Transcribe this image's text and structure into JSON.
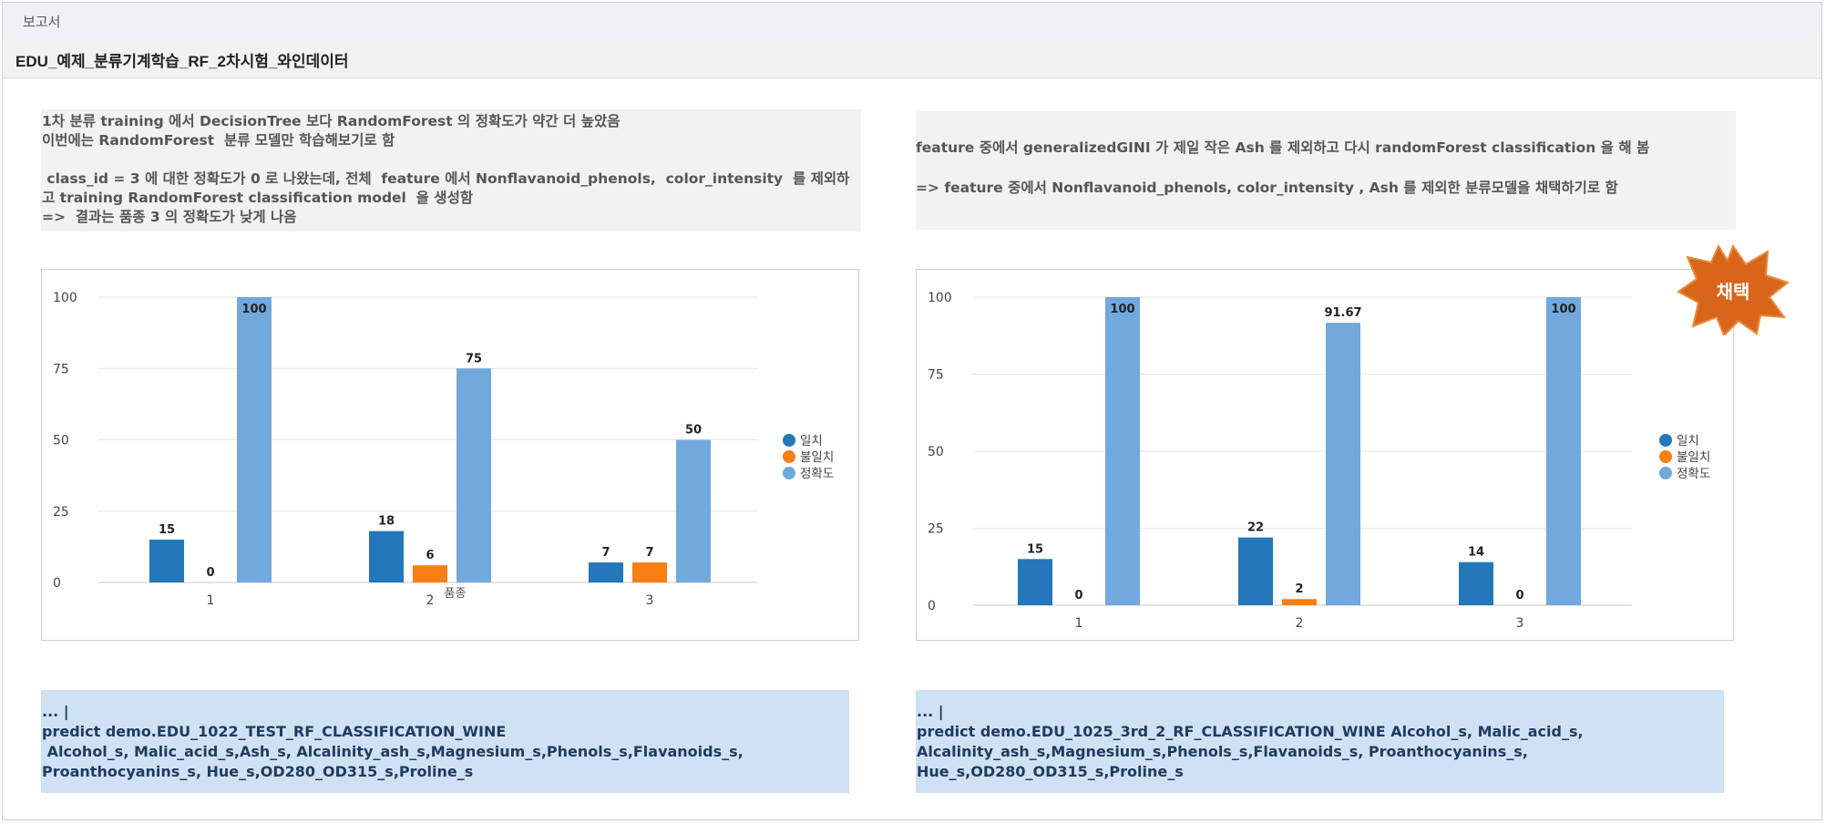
{
  "window": {
    "title": "보고서"
  },
  "report": {
    "title": "EDU_예제_분류기계학습_RF_2차시험_와인데이터"
  },
  "left_panel": {
    "note": "1차 분류 training 에서 DecisionTree 보다 RandomForest 의 정확도가 약간 더 높았음\n이번에는 RandomForest  분류 모델만 학습해보기로 함\n\n class_id = 3 에 대한 정확도가 0 로 나왔는데, 전체  feature 에서 Nonflavanoid_phenols,  color_intensity  를 제외하\n고 training RandomForest classification model  을 생성함\n=>  결과는 품종 3 의 정확도가 낮게 나옴",
    "query": "... |\npredict demo.EDU_1022_TEST_RF_CLASSIFICATION_WINE\n Alcohol_s, Malic_acid_s,Ash_s, Alcalinity_ash_s,Magnesium_s,Phenols_s,Flavanoids_s,\nProanthocyanins_s, Hue_s,OD280_OD315_s,Proline_s"
  },
  "right_panel": {
    "note": "feature 중에서 generalizedGINI 가 제일 작은 Ash 를 제외하고 다시 randomForest classification 을 해 봄\n\n=> feature 중에서 Nonflavanoid_phenols, color_intensity , Ash 를 제외한 분류모델을 채택하기로 함",
    "badge": "채택",
    "query": "... |\npredict demo.EDU_1025_3rd_2_RF_CLASSIFICATION_WINE Alcohol_s, Malic_acid_s,\nAlcalinity_ash_s,Magnesium_s,Phenols_s,Flavanoids_s, Proanthocyanins_s,\nHue_s,OD280_OD315_s,Proline_s"
  },
  "chart_data": [
    {
      "type": "bar",
      "categories": [
        "1",
        "2",
        "3"
      ],
      "xlabel": "품종",
      "ylabel": "",
      "ylim": [
        0,
        100
      ],
      "yticks": [
        0,
        25,
        50,
        75,
        100
      ],
      "grid": true,
      "legend_position": "right",
      "series": [
        {
          "name": "일치",
          "color": "#2477b8",
          "values": [
            15,
            18,
            7
          ]
        },
        {
          "name": "불일치",
          "color": "#f77f13",
          "values": [
            0,
            6,
            7
          ]
        },
        {
          "name": "정확도",
          "color": "#71a9dd",
          "values": [
            100,
            75,
            50
          ]
        }
      ]
    },
    {
      "type": "bar",
      "categories": [
        "1",
        "2",
        "3"
      ],
      "xlabel": "",
      "ylabel": "",
      "ylim": [
        0,
        100
      ],
      "yticks": [
        0,
        25,
        50,
        75,
        100
      ],
      "grid": true,
      "legend_position": "right",
      "series": [
        {
          "name": "일치",
          "color": "#2477b8",
          "values": [
            15,
            22,
            14
          ]
        },
        {
          "name": "불일치",
          "color": "#f77f13",
          "values": [
            0,
            2,
            0
          ]
        },
        {
          "name": "정확도",
          "color": "#71a9dd",
          "values": [
            100,
            91.67,
            100
          ]
        }
      ]
    }
  ]
}
